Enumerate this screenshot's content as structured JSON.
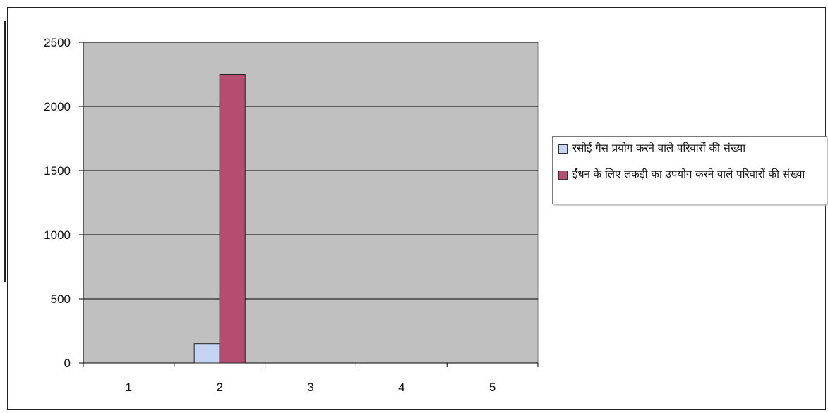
{
  "chart_data": {
    "type": "bar",
    "categories": [
      "1",
      "2",
      "3",
      "4",
      "5"
    ],
    "series": [
      {
        "name": "रसोई गैस प्रयोग करने वाले परिवारों की संख्या",
        "color": "#c6d4f4",
        "values": [
          0,
          150,
          0,
          0,
          0
        ]
      },
      {
        "name": "ईंधन के लिए लकड़ी का उपयोग करने वाले परिवारों की संख्या",
        "color": "#b44d6f",
        "values": [
          0,
          2250,
          0,
          0,
          0
        ]
      }
    ],
    "ylim": [
      0,
      2500
    ],
    "yticks": [
      "0",
      "500",
      "1000",
      "1500",
      "2000",
      "2500"
    ],
    "grid": true,
    "plot_background": "#c0c0c0",
    "legend_position": "right"
  }
}
